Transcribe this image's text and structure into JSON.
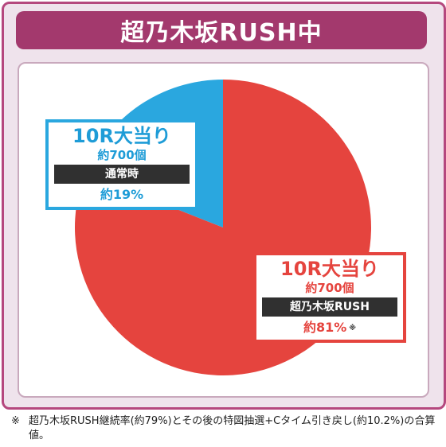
{
  "header": {
    "title": "超乃木坂RUSH中"
  },
  "chart_data": {
    "type": "pie",
    "title": "超乃木坂RUSH中",
    "slices": [
      {
        "label": "10R大当り",
        "count": "約700個",
        "condition": "通常時",
        "pct_label": "約19%",
        "value": 19,
        "color": "#2aa7df"
      },
      {
        "label": "10R大当り",
        "count": "約700個",
        "condition": "超乃木坂RUSH",
        "pct_label": "約81%",
        "value": 81,
        "color": "#e5443e",
        "note_mark": "※"
      }
    ]
  },
  "footnote": {
    "mark": "※",
    "text": "超乃木坂RUSH継続率(約79%)とその後の特図抽選+Cタイム引き戻し(約10.2%)の合算値。"
  }
}
